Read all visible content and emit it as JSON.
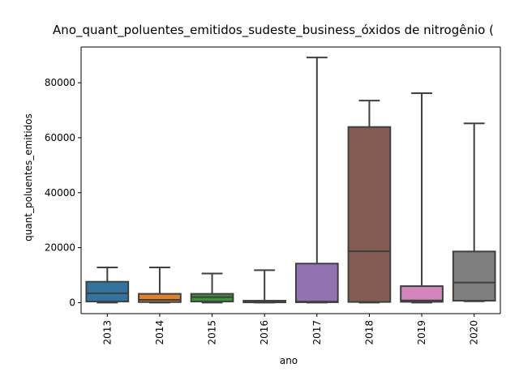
{
  "chart_data": {
    "type": "box",
    "title": "Ano_quant_poluentes_emitidos_sudeste_business_óxidos de nitrogênio (",
    "xlabel": "ano",
    "ylabel": "quant_poluentes_emitidos",
    "ylim": [
      -4000,
      93000
    ],
    "yticks": [
      0,
      20000,
      40000,
      60000,
      80000
    ],
    "ytick_labels": [
      "0",
      "20000",
      "40000",
      "60000",
      "80000"
    ],
    "categories": [
      "2013",
      "2014",
      "2015",
      "2016",
      "2017",
      "2018",
      "2019",
      "2020"
    ],
    "colors": [
      "#3274a1",
      "#e1812c",
      "#3a923a",
      "#c03d3e",
      "#9372b2",
      "#845b53",
      "#d684bd",
      "#7f7f7f"
    ],
    "boxes": [
      {
        "whisker_low": 0,
        "q1": 400,
        "median": 3400,
        "q3": 7600,
        "whisker_high": 12800
      },
      {
        "whisker_low": 0,
        "q1": 200,
        "median": 1000,
        "q3": 3200,
        "whisker_high": 12800
      },
      {
        "whisker_low": 0,
        "q1": 400,
        "median": 2000,
        "q3": 3200,
        "whisker_high": 10600
      },
      {
        "whisker_low": 0,
        "q1": 100,
        "median": 300,
        "q3": 700,
        "whisker_high": 11800
      },
      {
        "whisker_low": 0,
        "q1": 150,
        "median": 400,
        "q3": 14200,
        "whisker_high": 89200
      },
      {
        "whisker_low": 0,
        "q1": 250,
        "median": 18700,
        "q3": 63900,
        "whisker_high": 73500
      },
      {
        "whisker_low": 0,
        "q1": 300,
        "median": 800,
        "q3": 6000,
        "whisker_high": 76200
      },
      {
        "whisker_low": 500,
        "q1": 700,
        "median": 7300,
        "q3": 18600,
        "whisker_high": 65200
      }
    ]
  }
}
